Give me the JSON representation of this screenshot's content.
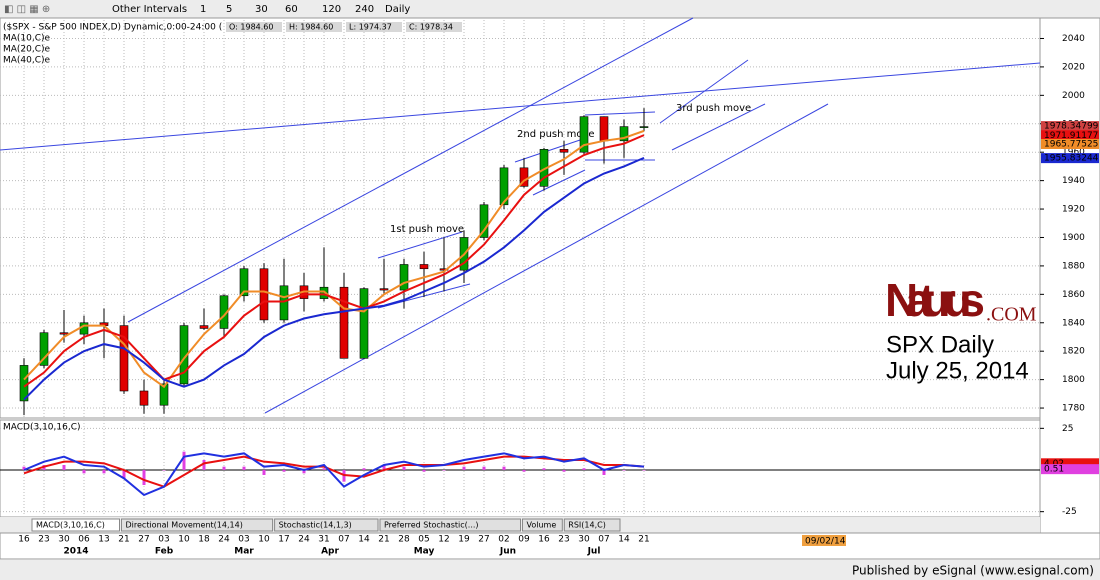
{
  "toolbar": {
    "intervals_menu": "Other Intervals",
    "intervals": [
      "1",
      "5",
      "30",
      "60",
      "120",
      "240",
      "Daily"
    ]
  },
  "header": {
    "symbol": "($SPX - S&P 500 INDEX,D) Dynamic,0:00-24:00 (",
    "quote": [
      "O: 1984.60",
      "H: 1984.60",
      "L: 1974.37",
      "C: 1978.34"
    ]
  },
  "chart_data": [
    {
      "type": "candlestick",
      "categories": [
        "16",
        "23",
        "30",
        "06",
        "13",
        "21",
        "27",
        "03",
        "10",
        "18",
        "24",
        "03",
        "10",
        "17",
        "24",
        "31",
        "07",
        "14",
        "21",
        "28",
        "05",
        "12",
        "19",
        "27",
        "02",
        "09",
        "16",
        "23",
        "30",
        "07",
        "14",
        "21"
      ],
      "month_labels": [
        "2014",
        "Feb",
        "Mar",
        "Apr",
        "May",
        "Jun",
        "Jul"
      ],
      "open": [
        1785,
        1810,
        1833,
        1832,
        1840,
        1838,
        1792,
        1782,
        1797,
        1838,
        1836,
        1859,
        1878,
        1842,
        1866,
        1857,
        1865,
        1815,
        1864,
        1863,
        1881,
        1878,
        1877,
        1900,
        1923,
        1949,
        1936,
        1962,
        1960,
        1985,
        1968,
        1978
      ],
      "high": [
        1815,
        1835,
        1849,
        1845,
        1850,
        1845,
        1800,
        1800,
        1840,
        1850,
        1860,
        1880,
        1882,
        1885,
        1875,
        1893,
        1875,
        1865,
        1885,
        1885,
        1890,
        1900,
        1905,
        1925,
        1951,
        1956,
        1963,
        1968,
        1986,
        1985,
        1983,
        1991
      ],
      "low": [
        1775,
        1808,
        1826,
        1825,
        1815,
        1790,
        1776,
        1776,
        1795,
        1835,
        1830,
        1855,
        1840,
        1840,
        1848,
        1855,
        1815,
        1815,
        1860,
        1850,
        1858,
        1862,
        1868,
        1898,
        1920,
        1935,
        1933,
        1944,
        1958,
        1952,
        1956,
        1975
      ],
      "close": [
        1810,
        1833,
        1832,
        1840,
        1838,
        1792,
        1782,
        1797,
        1838,
        1836,
        1859,
        1878,
        1842,
        1866,
        1857,
        1865,
        1815,
        1864,
        1863,
        1881,
        1878,
        1877,
        1900,
        1923,
        1949,
        1936,
        1962,
        1960,
        1985,
        1968,
        1978,
        1978
      ],
      "up_color": "#00a000",
      "down_color": "#e00000",
      "series": [
        {
          "name": "MA(10,C)e",
          "color": "#f08c28",
          "values": [
            1800,
            1815,
            1830,
            1838,
            1838,
            1825,
            1805,
            1795,
            1815,
            1832,
            1845,
            1862,
            1862,
            1858,
            1862,
            1862,
            1850,
            1848,
            1860,
            1868,
            1872,
            1876,
            1888,
            1905,
            1925,
            1940,
            1948,
            1955,
            1965,
            1968,
            1970,
            1975
          ]
        },
        {
          "name": "MA(20,C)e",
          "color": "#e81010",
          "values": [
            1795,
            1805,
            1820,
            1830,
            1835,
            1830,
            1815,
            1800,
            1805,
            1820,
            1830,
            1845,
            1855,
            1855,
            1860,
            1860,
            1855,
            1850,
            1855,
            1862,
            1868,
            1874,
            1882,
            1895,
            1912,
            1930,
            1942,
            1950,
            1958,
            1963,
            1966,
            1972
          ]
        },
        {
          "name": "MA(40,C)e",
          "color": "#1a28d0",
          "values": [
            1786,
            1800,
            1812,
            1820,
            1825,
            1822,
            1812,
            1800,
            1795,
            1800,
            1810,
            1818,
            1830,
            1838,
            1843,
            1846,
            1848,
            1850,
            1852,
            1856,
            1862,
            1868,
            1875,
            1883,
            1893,
            1905,
            1918,
            1928,
            1938,
            1945,
            1950,
            1956
          ]
        }
      ],
      "badges": [
        {
          "value": 1978.34799,
          "color": "#d04040"
        },
        {
          "value": 1971.91177,
          "color": "#e81010"
        },
        {
          "value": 1965.77525,
          "color": "#f08c28"
        },
        {
          "value": 1955.83244,
          "color": "#1a28d0"
        }
      ],
      "ylim": [
        1773,
        2053
      ],
      "yticks": [
        1780,
        1800,
        1820,
        1840,
        1860,
        1880,
        1900,
        1920,
        1940,
        1960,
        1980,
        2000,
        2020,
        2040
      ],
      "grid": true
    },
    {
      "type": "macd",
      "title": "MACD(3,10,16,C)",
      "series": [
        {
          "style": "bar",
          "color": "#e040e0",
          "values": [
            2,
            3,
            3,
            -2,
            -2,
            -5,
            -9,
            0,
            11,
            6,
            2,
            2,
            -3,
            -1,
            -2,
            1,
            -7,
            1,
            3,
            2,
            -1,
            0,
            2,
            2,
            2,
            -1,
            1,
            -1,
            1,
            -3,
            0,
            0
          ]
        },
        {
          "style": "line",
          "color": "#e81010",
          "values": [
            -2,
            2,
            5,
            5,
            4,
            0,
            -6,
            -10,
            -3,
            4,
            6,
            8,
            5,
            4,
            2,
            2,
            -3,
            -4,
            0,
            3,
            3,
            3,
            4,
            6,
            8,
            8,
            7,
            6,
            6,
            3,
            3,
            2
          ]
        },
        {
          "style": "line",
          "color": "#2030e0",
          "values": [
            0,
            5,
            8,
            3,
            2,
            -5,
            -15,
            -10,
            8,
            10,
            8,
            10,
            2,
            3,
            0,
            3,
            -10,
            -3,
            3,
            5,
            2,
            3,
            6,
            8,
            10,
            7,
            8,
            5,
            7,
            0,
            3,
            2
          ]
        }
      ],
      "badges": [
        {
          "value": 4.02,
          "color": "#e81010"
        },
        {
          "value": 0.51,
          "color": "#e040e0"
        }
      ],
      "ylim": [
        -27,
        30
      ],
      "yticks": [
        25,
        -25
      ],
      "grid": true
    }
  ],
  "annotations": [
    "1st push move",
    "2nd push move",
    "3rd push move"
  ],
  "brand": {
    "name": "Naturus",
    "suffix": ".COM",
    "line1": "SPX Daily",
    "line2": "July 25, 2014"
  },
  "tabs": [
    "MACD(3,10,16,C)",
    "Directional Movement(14,14)",
    "Stochastic(14,1,3)",
    "Preferred Stochastic(...)",
    "Volume",
    "RSI(14,C)"
  ],
  "date_marker": "09/02/14",
  "footer": "Published by eSignal (www.esignal.com)"
}
